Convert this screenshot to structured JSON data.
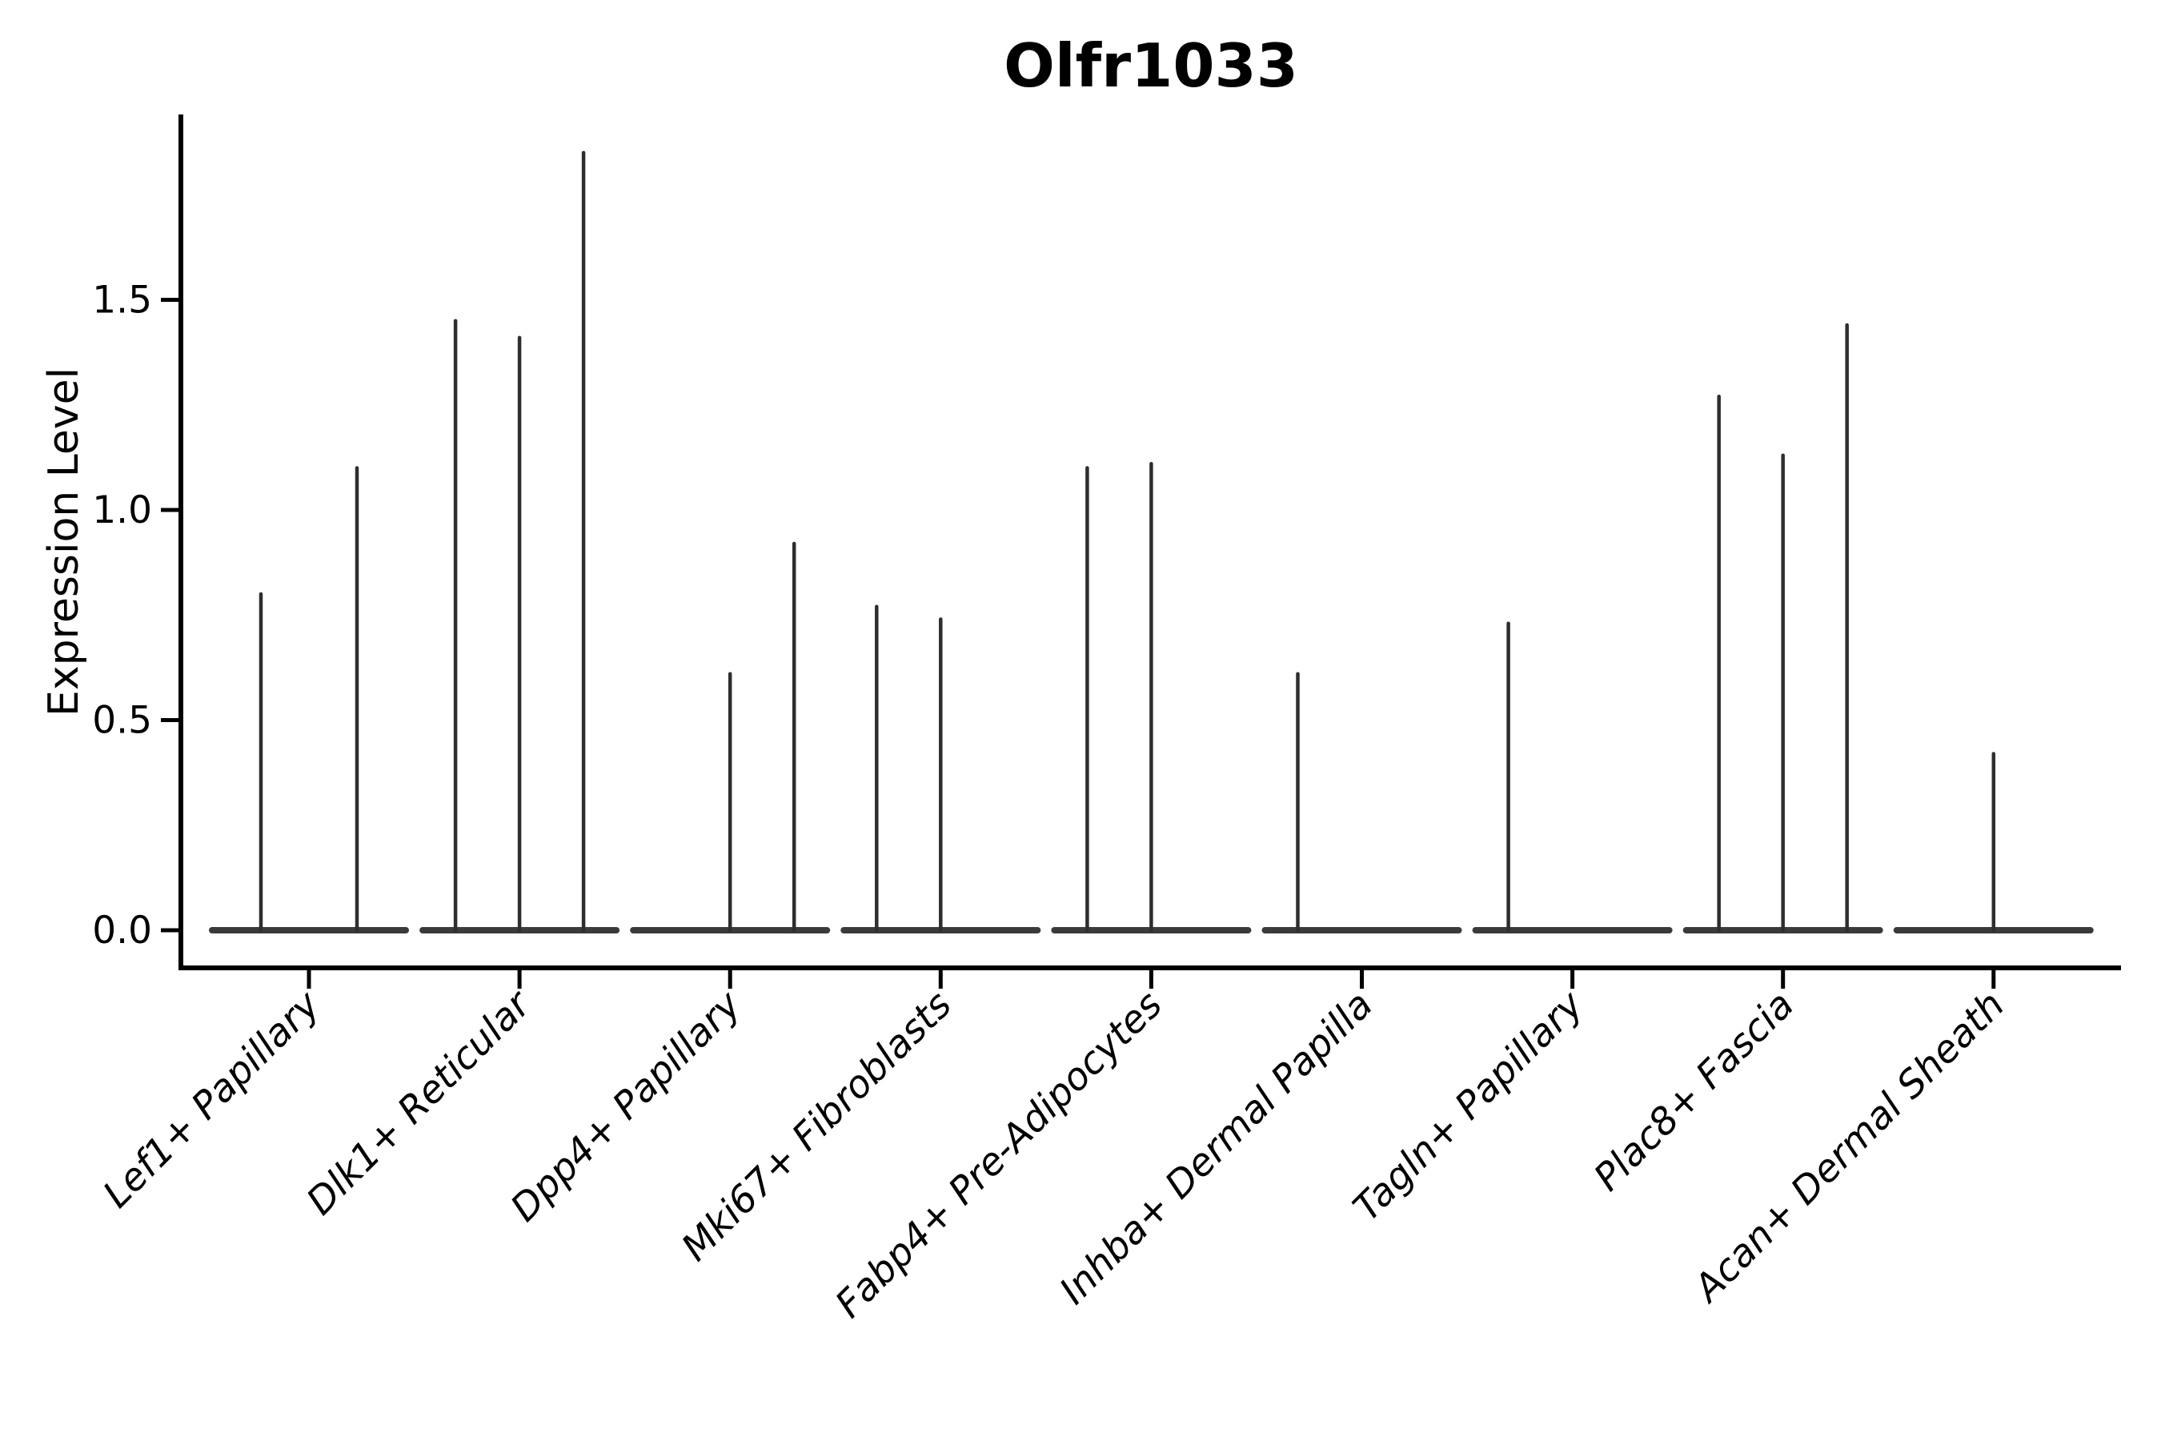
{
  "title": "Olfr1033",
  "axes": {
    "ylabel": "Expression Level",
    "xlabel": ""
  },
  "colors": {
    "background": "#ffffff",
    "spine": "#000000",
    "tick": "#000000",
    "violin": "#2e2e2e",
    "violin_base": "#3a3a3a",
    "text": "#000000"
  },
  "chart_data": {
    "type": "violin",
    "title": "Olfr1033",
    "ylabel": "Expression Level",
    "xlabel": "",
    "grid": false,
    "legend": null,
    "ylim": [
      -0.09,
      1.94
    ],
    "yticks": [
      0.0,
      0.5,
      1.0,
      1.5
    ],
    "ytick_labels": [
      "0.0",
      "0.5",
      "1.0",
      "1.5"
    ],
    "categories": [
      "Lef1+ Papillary",
      "Dlk1+ Reticular",
      "Dpp4+ Papillary",
      "Mki67+ Fibroblasts",
      "Fabp4+ Pre-Adipocytes",
      "Inhba+ Dermal Papilla",
      "Tagln+ Papillary",
      "Plac8+ Fascia",
      "Acan+ Dermal Sheath"
    ],
    "note": "Each category shows flat violins at expression 0 with thin density spikes; dx = horizontal offset (px) of each spike from the category tick",
    "series": [
      {
        "name": "Lef1+ Papillary",
        "spikes": [
          {
            "dx": -60,
            "value": 0.8
          },
          {
            "dx": 60,
            "value": 1.1
          }
        ]
      },
      {
        "name": "Dlk1+ Reticular",
        "spikes": [
          {
            "dx": -80,
            "value": 1.45
          },
          {
            "dx": 0,
            "value": 1.41
          },
          {
            "dx": 80,
            "value": 1.85
          }
        ]
      },
      {
        "name": "Dpp4+ Papillary",
        "spikes": [
          {
            "dx": 0,
            "value": 0.61
          },
          {
            "dx": 80,
            "value": 0.92
          }
        ]
      },
      {
        "name": "Mki67+ Fibroblasts",
        "spikes": [
          {
            "dx": -80,
            "value": 0.77
          },
          {
            "dx": 0,
            "value": 0.74
          }
        ]
      },
      {
        "name": "Fabp4+ Pre-Adipocytes",
        "spikes": [
          {
            "dx": -80,
            "value": 1.1
          },
          {
            "dx": 0,
            "value": 1.11
          }
        ]
      },
      {
        "name": "Inhba+ Dermal Papilla",
        "spikes": [
          {
            "dx": -80,
            "value": 0.61
          }
        ]
      },
      {
        "name": "Tagln+ Papillary",
        "spikes": [
          {
            "dx": -80,
            "value": 0.73
          }
        ]
      },
      {
        "name": "Plac8+ Fascia",
        "spikes": [
          {
            "dx": -80,
            "value": 1.27
          },
          {
            "dx": 0,
            "value": 1.13
          },
          {
            "dx": 80,
            "value": 1.44
          }
        ]
      },
      {
        "name": "Acan+ Dermal Sheath",
        "spikes": [
          {
            "dx": 0,
            "value": 0.42
          }
        ]
      }
    ]
  }
}
